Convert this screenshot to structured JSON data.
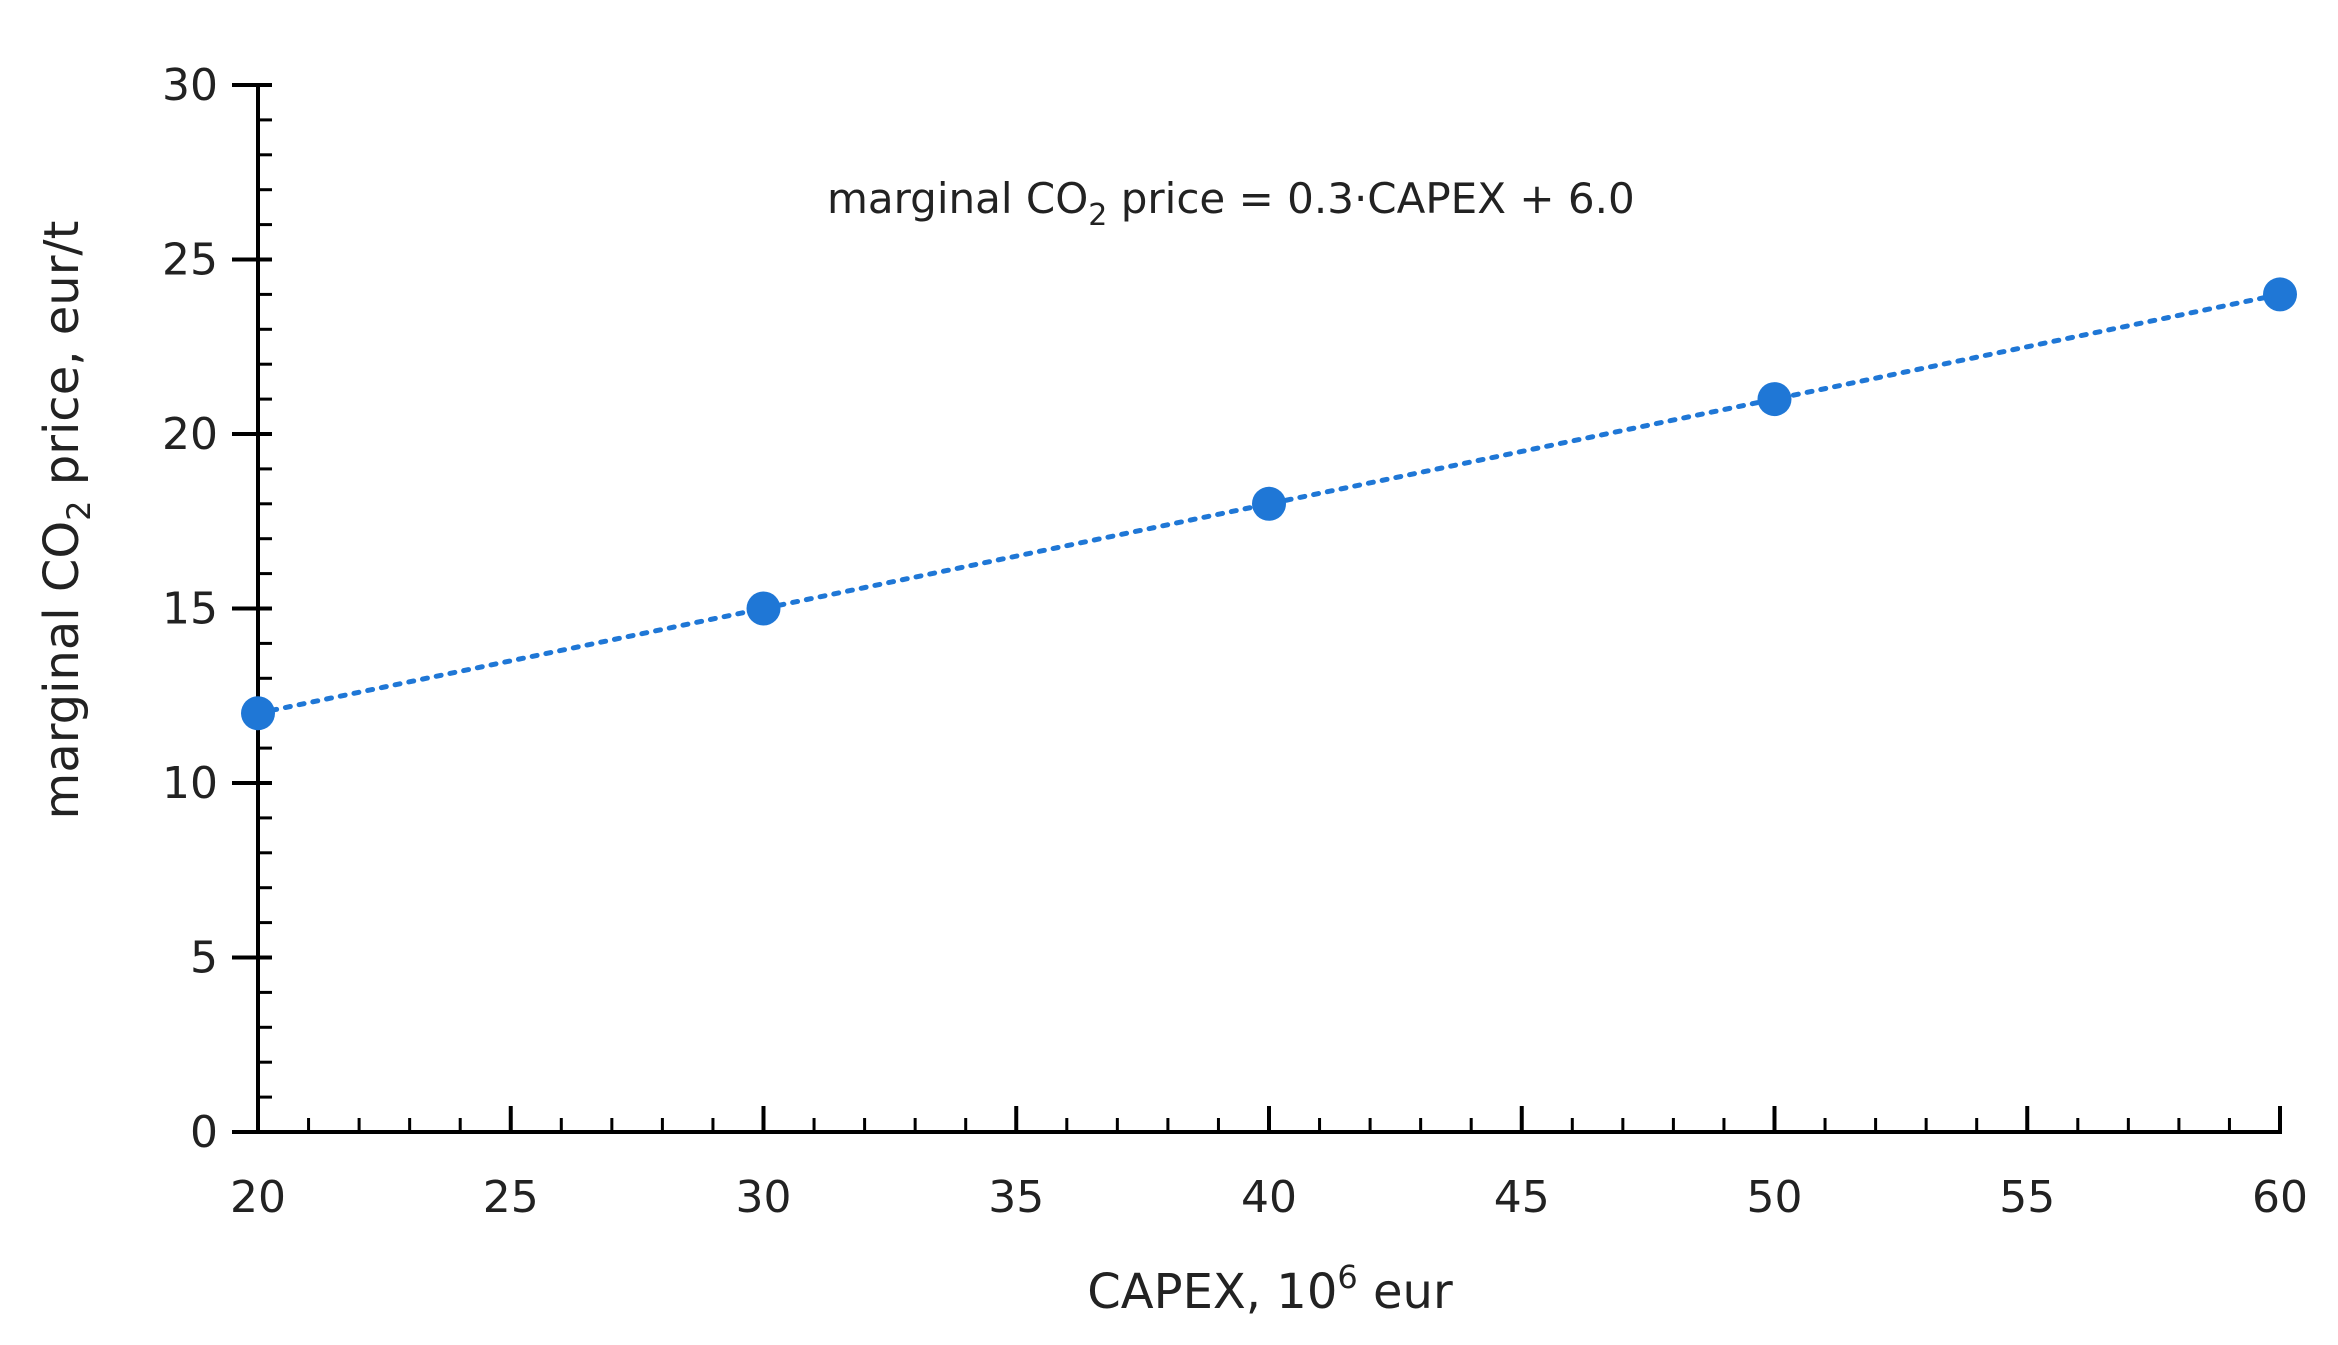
{
  "chart_data": {
    "type": "scatter",
    "title": "",
    "xlabel": {
      "main": "CAPEX, 10",
      "sup": "6",
      "tail": " eur"
    },
    "ylabel": {
      "main": "marginal CO",
      "sub": "2",
      "tail": " price, eur/t"
    },
    "annotation": {
      "main": "marginal CO",
      "sub": "2",
      "tail": " price = 0.3·CAPEX + 6.0"
    },
    "xlim": [
      20,
      60
    ],
    "ylim": [
      0,
      30
    ],
    "x_ticks": [
      "20",
      "25",
      "30",
      "35",
      "40",
      "45",
      "50",
      "55",
      "60"
    ],
    "y_ticks": [
      "0",
      "5",
      "10",
      "15",
      "20",
      "25",
      "30"
    ],
    "x_minor_step": 1,
    "y_minor_step": 1,
    "grid": false,
    "series": [
      {
        "name": "marginal CO2 price",
        "x": [
          20,
          30,
          40,
          50,
          60
        ],
        "values": [
          12,
          15,
          18,
          21,
          24
        ],
        "color": "#1F77D6",
        "trendline": {
          "slope": 0.3,
          "intercept": 6.0,
          "style": "dotted"
        }
      }
    ]
  }
}
